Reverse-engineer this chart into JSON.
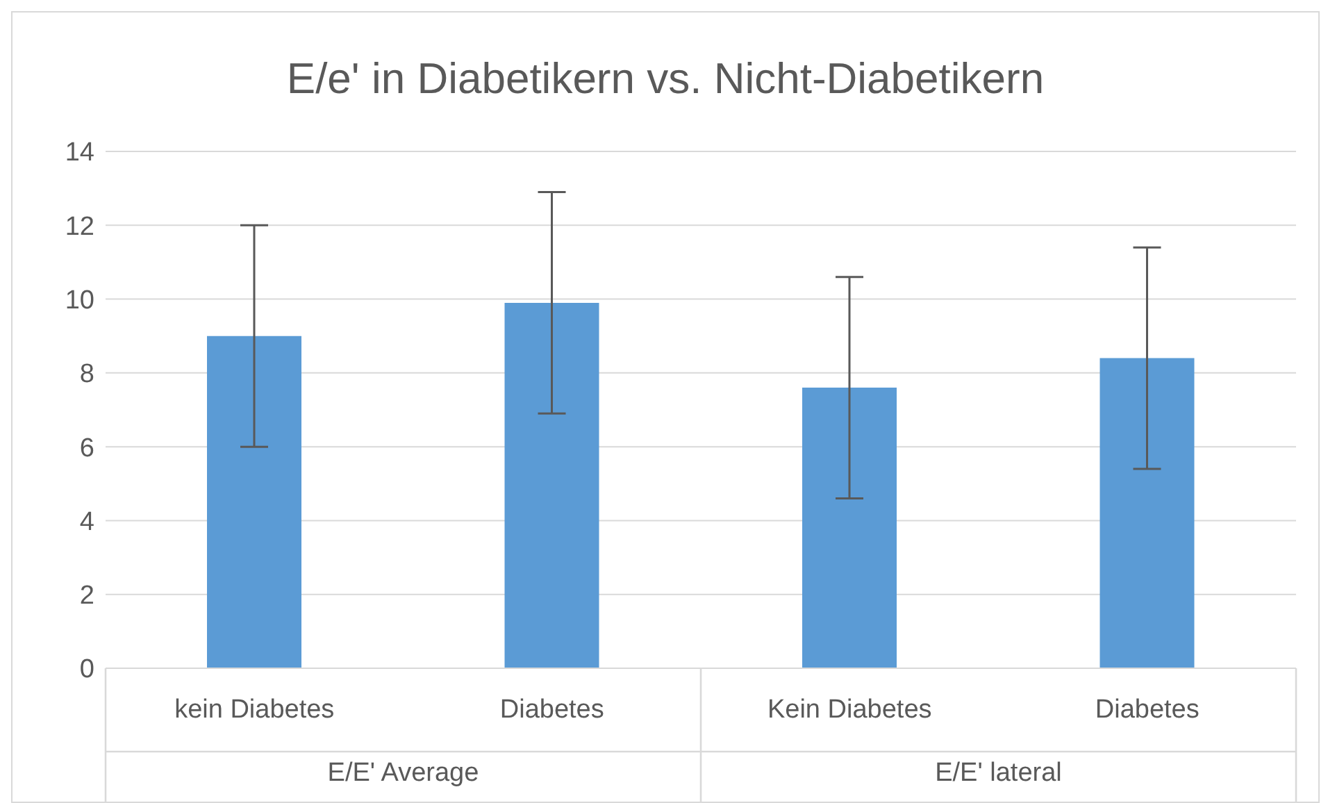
{
  "chart_data": {
    "type": "bar",
    "title": "E/e' in Diabetikern vs. Nicht-Diabetikern",
    "categories": [
      "kein Diabetes",
      "Diabetes",
      "Kein Diabetes",
      "Diabetes"
    ],
    "values": [
      9.0,
      9.9,
      7.6,
      8.4
    ],
    "errors": [
      3.0,
      3.0,
      3.0,
      3.0
    ],
    "color": "#5b9bd5",
    "ylim": [
      0,
      14
    ],
    "yticks": [
      0,
      2,
      4,
      6,
      8,
      10,
      12,
      14
    ],
    "grid": "y",
    "annotations": [
      "E/E' Average",
      "E/E' lateral"
    ]
  }
}
